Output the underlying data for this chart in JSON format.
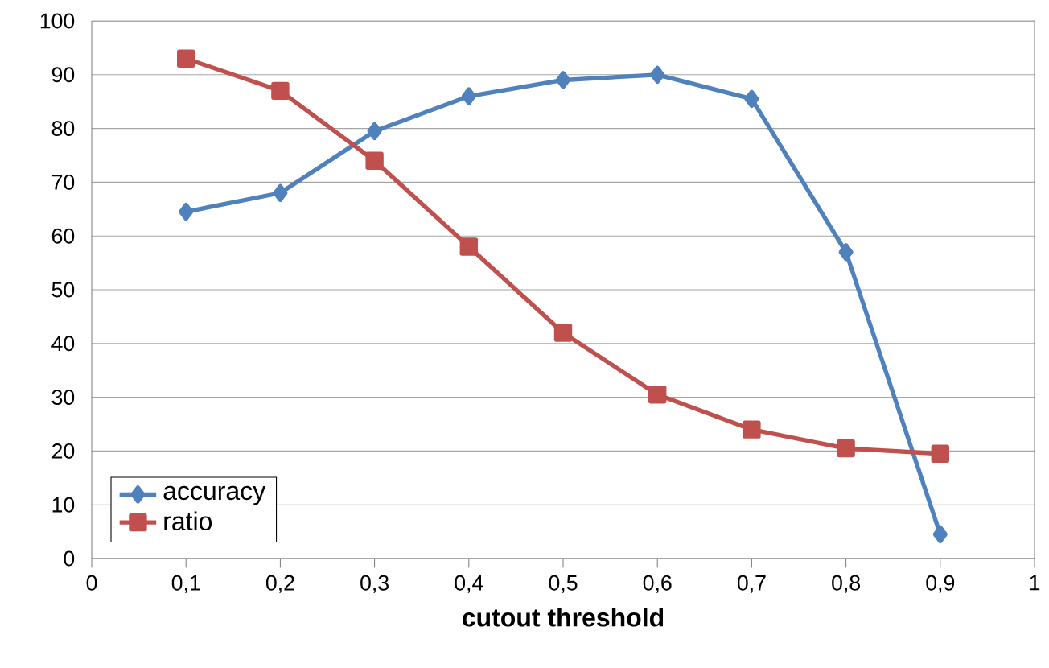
{
  "chart_data": {
    "type": "line",
    "xlabel": "cutout threshold",
    "x": [
      0.1,
      0.2,
      0.3,
      0.4,
      0.5,
      0.6,
      0.7,
      0.8,
      0.9
    ],
    "series": [
      {
        "name": "accuracy",
        "color": "#4f81bd",
        "marker": "diamond",
        "values": [
          64.5,
          68,
          79.5,
          86,
          89,
          90,
          85.5,
          57,
          4.5
        ]
      },
      {
        "name": "ratio",
        "color": "#c0504d",
        "marker": "square",
        "values": [
          93,
          87,
          74,
          58,
          42,
          30.5,
          24,
          20.5,
          19.5
        ]
      }
    ],
    "xlim": [
      0,
      1
    ],
    "xticks": [
      0,
      {
        "value": 0.1,
        "label": "0,1"
      },
      {
        "value": 0.2,
        "label": "0,2"
      },
      {
        "value": 0.3,
        "label": "0,3"
      },
      {
        "value": 0.4,
        "label": "0,4"
      },
      {
        "value": 0.5,
        "label": "0,5"
      },
      {
        "value": 0.6,
        "label": "0,6"
      },
      {
        "value": 0.7,
        "label": "0,7"
      },
      {
        "value": 0.8,
        "label": "0,8"
      },
      {
        "value": 0.9,
        "label": "0,9"
      },
      1
    ],
    "ylim": [
      0,
      100
    ],
    "yticks": [
      0,
      10,
      20,
      30,
      40,
      50,
      60,
      70,
      80,
      90,
      100
    ],
    "grid": "y",
    "legend": "bottom left",
    "line_style": "solid"
  }
}
